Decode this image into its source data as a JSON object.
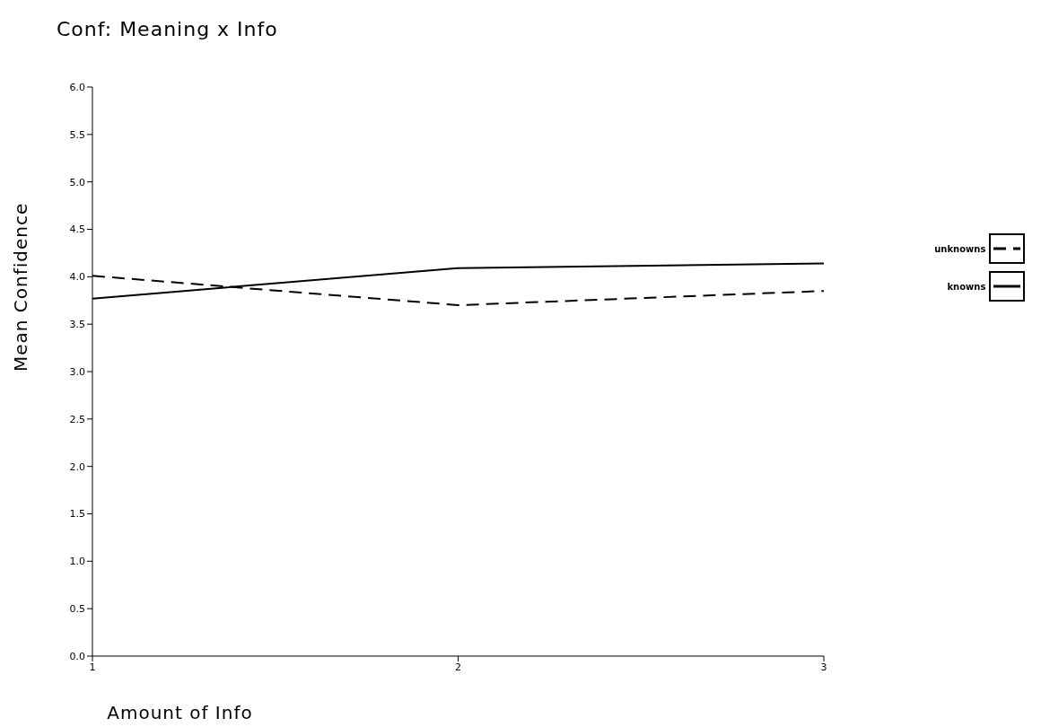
{
  "chart_data": {
    "type": "line",
    "title": "Conf: Meaning x Info",
    "xlabel": "Amount of Info",
    "ylabel": "Mean Confidence",
    "x": [
      1,
      2,
      3
    ],
    "xlim": [
      1,
      3
    ],
    "xticks": [
      1,
      2,
      3
    ],
    "ylim": [
      0,
      6
    ],
    "yticks": [
      {
        "value": 0,
        "label": "0.0"
      },
      {
        "value": 0.5,
        "label": "0.5"
      },
      {
        "value": 1,
        "label": "1.0"
      },
      {
        "value": 1.5,
        "label": "1.5"
      },
      {
        "value": 2,
        "label": "2.0"
      },
      {
        "value": 2.5,
        "label": "2.5"
      },
      {
        "value": 3,
        "label": "3.0"
      },
      {
        "value": 3.5,
        "label": "3.5"
      },
      {
        "value": 4,
        "label": "4.0"
      },
      {
        "value": 4.5,
        "label": "4.5"
      },
      {
        "value": 5,
        "label": "5.0"
      },
      {
        "value": 5.5,
        "label": "5.5"
      },
      {
        "value": 6,
        "label": "6.0"
      }
    ],
    "series": [
      {
        "name": "unknowns",
        "color": "#000000",
        "line_style": "dashed",
        "values": [
          4.01,
          3.7,
          3.85
        ]
      },
      {
        "name": "knowns",
        "color": "#000000",
        "line_style": "solid",
        "values": [
          3.77,
          4.09,
          4.14
        ]
      }
    ],
    "grid": false,
    "legend": "right",
    "marker": "none"
  }
}
